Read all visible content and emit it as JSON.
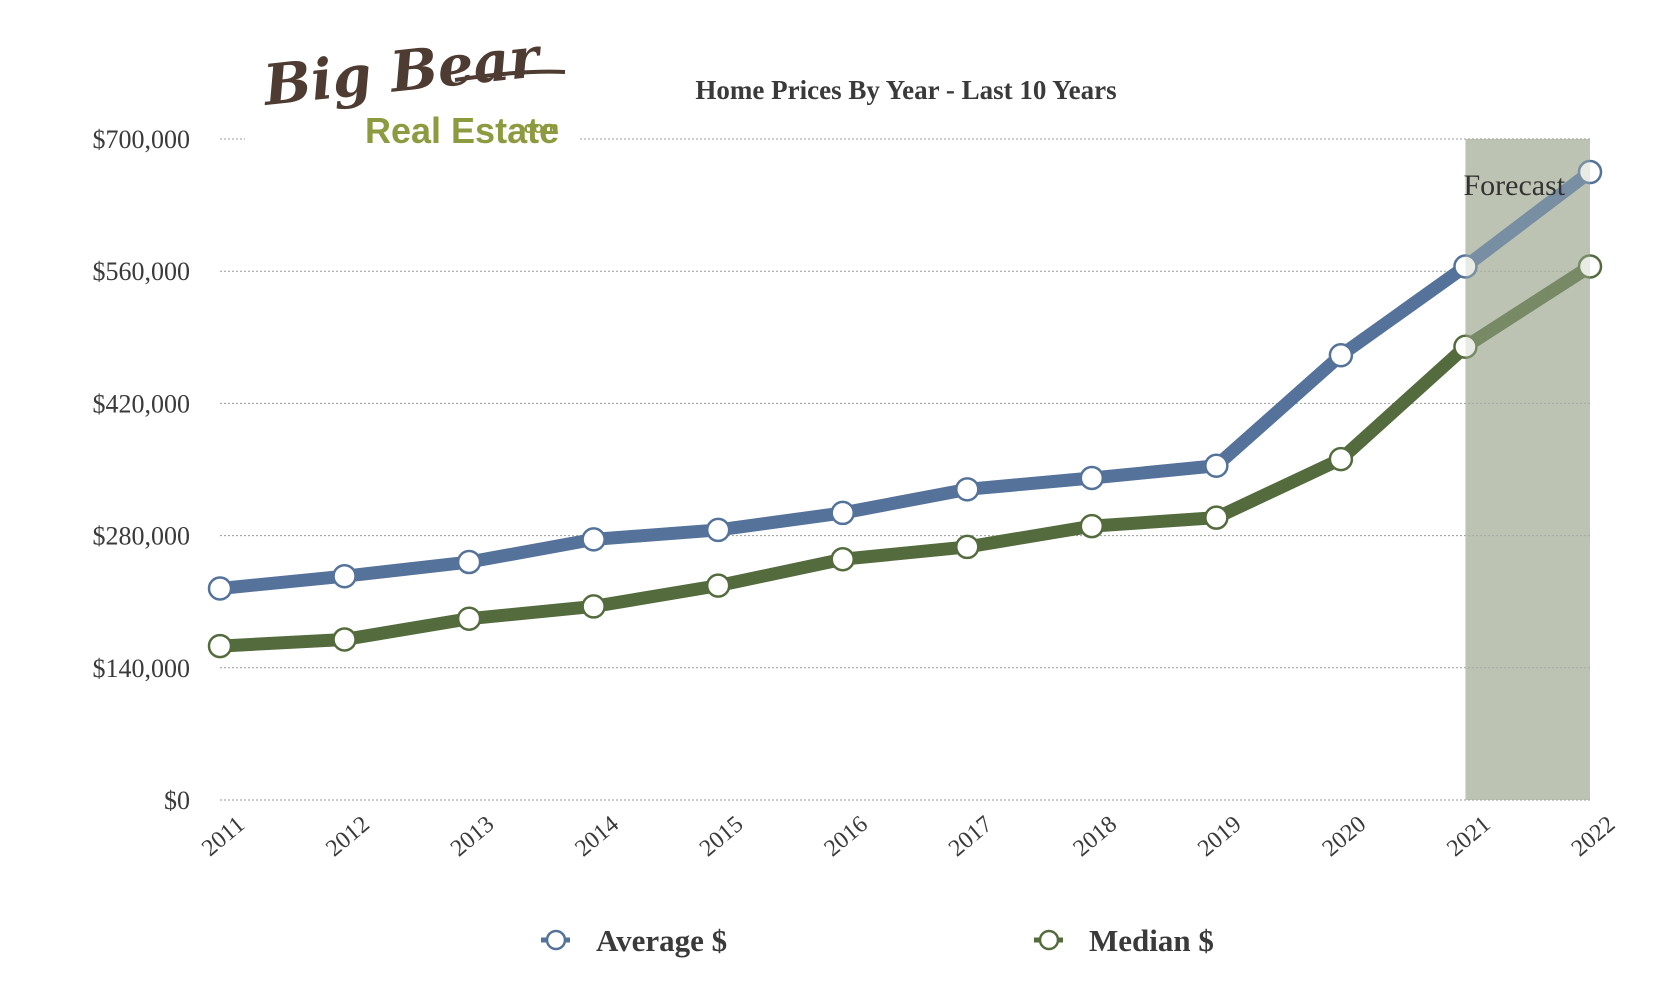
{
  "logo": {
    "line1": "Big Bear",
    "line2": "Real Estate",
    "suffix": ".com"
  },
  "chart_data": {
    "type": "line",
    "title": "Home Prices By Year - Last 10 Years",
    "xlabel": "",
    "ylabel": "",
    "categories": [
      "2011",
      "2012",
      "2013",
      "2014",
      "2015",
      "2016",
      "2017",
      "2018",
      "2019",
      "2020",
      "2021",
      "2022"
    ],
    "series": [
      {
        "name": "Average $",
        "color": "#54729a",
        "values": [
          224000,
          237000,
          252000,
          276000,
          286000,
          304000,
          329000,
          341000,
          354000,
          471000,
          565000,
          665000
        ]
      },
      {
        "name": "Median $",
        "color": "#546b3d",
        "values": [
          163000,
          170000,
          192000,
          205000,
          227000,
          255000,
          268000,
          290000,
          299000,
          361000,
          480000,
          565000
        ]
      }
    ],
    "ylim": [
      0,
      700000
    ],
    "yticks": [
      "$0",
      "$140,000",
      "$280,000",
      "$420,000",
      "$560,000",
      "$700,000"
    ],
    "ytick_values": [
      0,
      140000,
      280000,
      420000,
      560000,
      700000
    ],
    "grid": true,
    "legend": "bottom",
    "forecast_band": {
      "label": "Forecast",
      "from": "2021",
      "to": "2022",
      "color": "#bcc3b2"
    }
  }
}
